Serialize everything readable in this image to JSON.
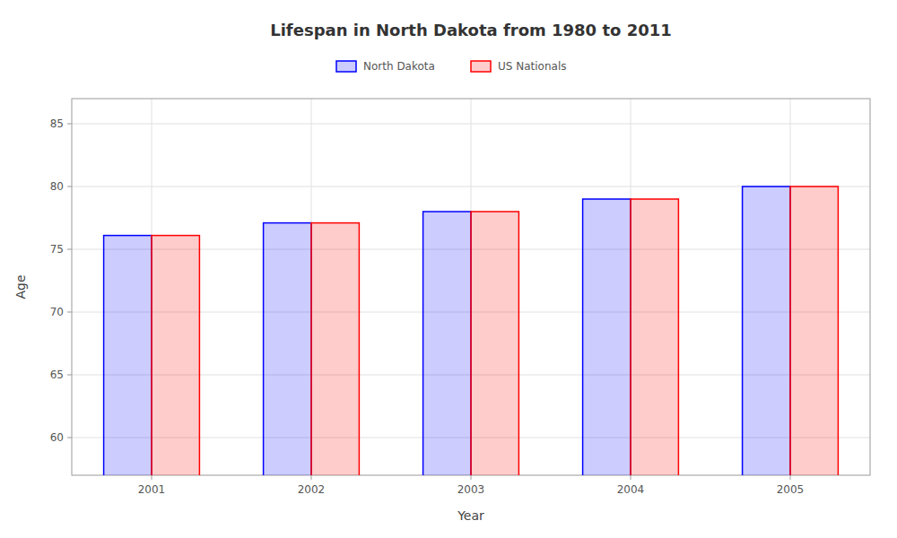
{
  "chart_data": {
    "type": "bar",
    "title": "Lifespan in North Dakota from 1980 to 2011",
    "x_label": "Year",
    "y_label": "Age",
    "categories": [
      "2001",
      "2002",
      "2003",
      "2004",
      "2005"
    ],
    "series": [
      {
        "name": "North Dakota",
        "color": "#0000ff",
        "values": [
          76.1,
          77.1,
          78.0,
          79.0,
          80.0
        ]
      },
      {
        "name": "US Nationals",
        "color": "#ff0000",
        "values": [
          76.1,
          77.1,
          78.0,
          79.0,
          80.0
        ]
      }
    ],
    "ylim": [
      57,
      87
    ],
    "yticks": [
      60,
      65,
      70,
      75,
      80,
      85
    ],
    "grid": true,
    "legend": "top"
  }
}
